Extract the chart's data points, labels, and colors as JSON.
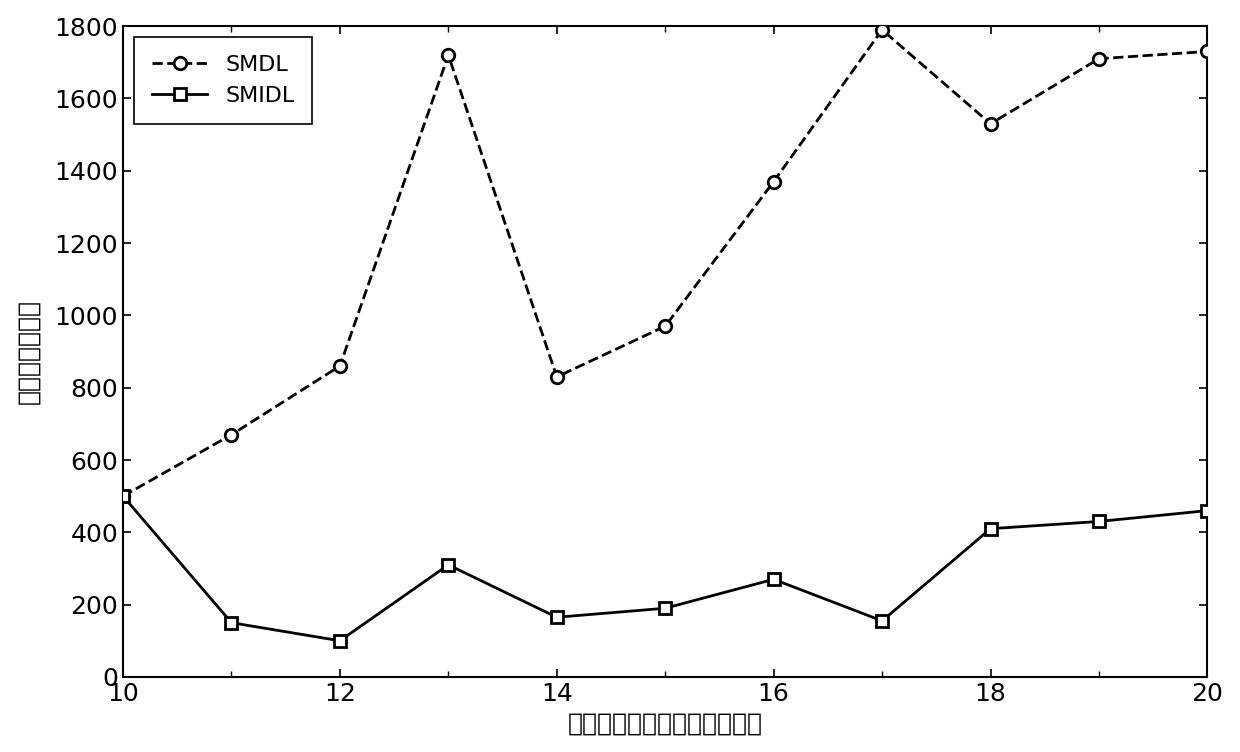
{
  "x": [
    10,
    11,
    12,
    13,
    14,
    15,
    16,
    17,
    18,
    19,
    20
  ],
  "SMDL": [
    500,
    670,
    860,
    1720,
    830,
    970,
    1370,
    1790,
    1530,
    1710,
    1730
  ],
  "SMIDL": [
    500,
    150,
    100,
    310,
    165,
    190,
    270,
    155,
    410,
    430,
    460
  ],
  "xlabel": "有类别标记的训练样本类别数",
  "ylabel": "训练时间（秒）",
  "xlim": [
    10,
    20
  ],
  "ylim": [
    0,
    1800
  ],
  "yticks": [
    0,
    200,
    400,
    600,
    800,
    1000,
    1200,
    1400,
    1600,
    1800
  ],
  "xticks_major": [
    10,
    12,
    14,
    16,
    18,
    20
  ],
  "xticks_minor": [
    11,
    13,
    15,
    17,
    19
  ],
  "line_color": "#000000",
  "legend_SMDL": "SMDL",
  "legend_SMIDL": "SMIDL",
  "label_fontsize": 18,
  "tick_fontsize": 18,
  "legend_fontsize": 16,
  "linewidth": 2.0,
  "markersize": 9
}
